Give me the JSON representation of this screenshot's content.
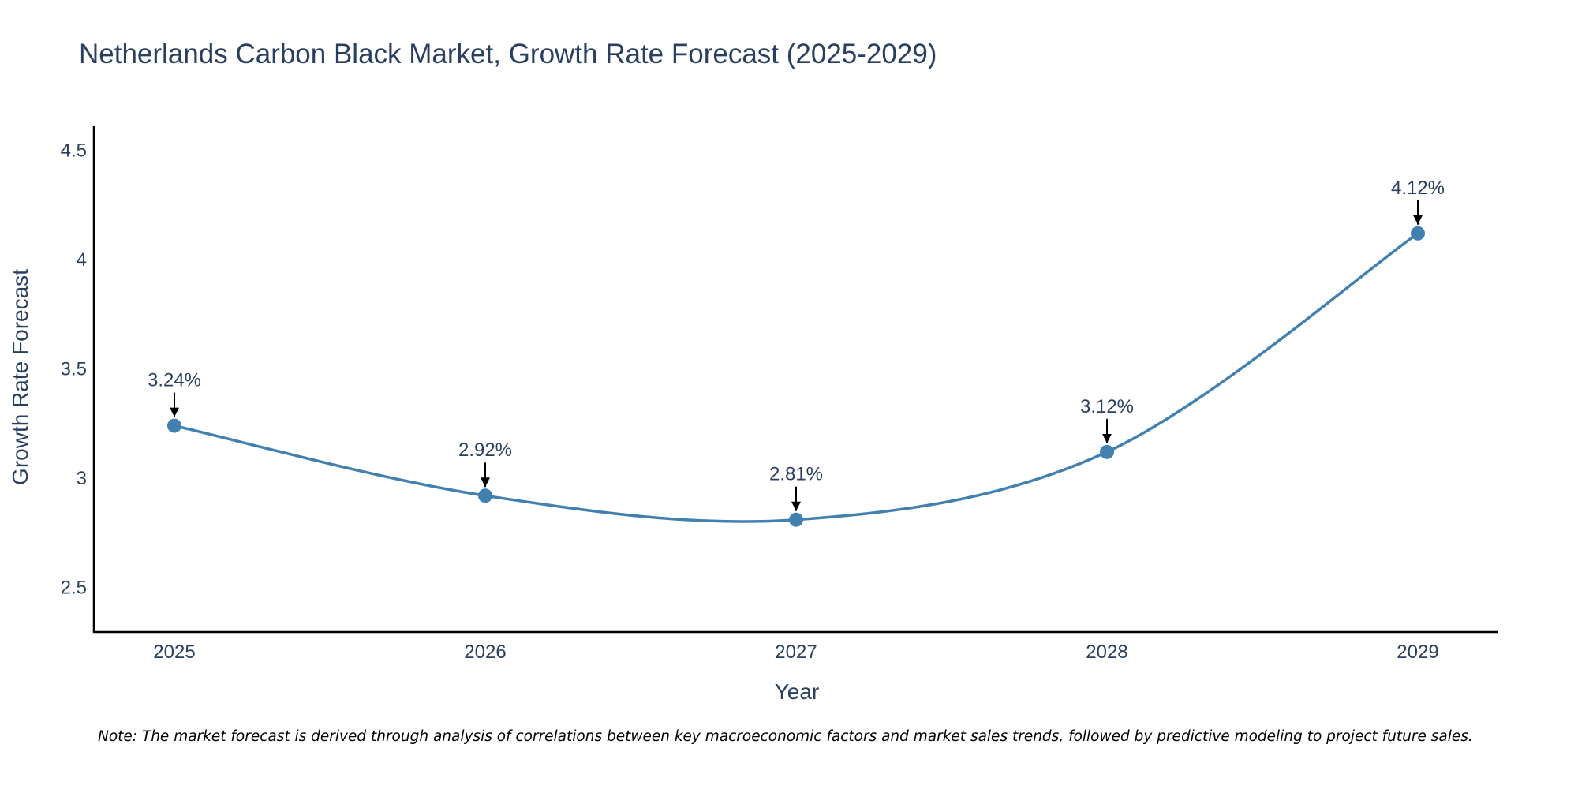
{
  "chart_data": {
    "type": "line",
    "title": "Netherlands Carbon Black Market, Growth Rate Forecast (2025-2029)",
    "xlabel": "Year",
    "ylabel": "Growth Rate Forecast",
    "x": [
      "2025",
      "2026",
      "2027",
      "2028",
      "2029"
    ],
    "series": [
      {
        "name": "Growth Rate Forecast",
        "values": [
          3.24,
          2.92,
          2.81,
          3.12,
          4.12
        ],
        "labels": [
          "3.24%",
          "2.92%",
          "2.81%",
          "3.12%",
          "4.12%"
        ]
      }
    ],
    "ylim": [
      2.3,
      4.61
    ],
    "y_ticks": [
      2.5,
      3,
      3.5,
      4,
      4.5
    ],
    "y_tick_labels": [
      "2.5",
      "3",
      "3.5",
      "4",
      "4.5"
    ],
    "line_shape": "spline",
    "grid": false,
    "legend": false,
    "line_color": "#4280b0",
    "note": "Note: The market forecast is derived through analysis of correlations between key macroeconomic factors and market sales trends, followed by predictive modeling to project future sales."
  }
}
